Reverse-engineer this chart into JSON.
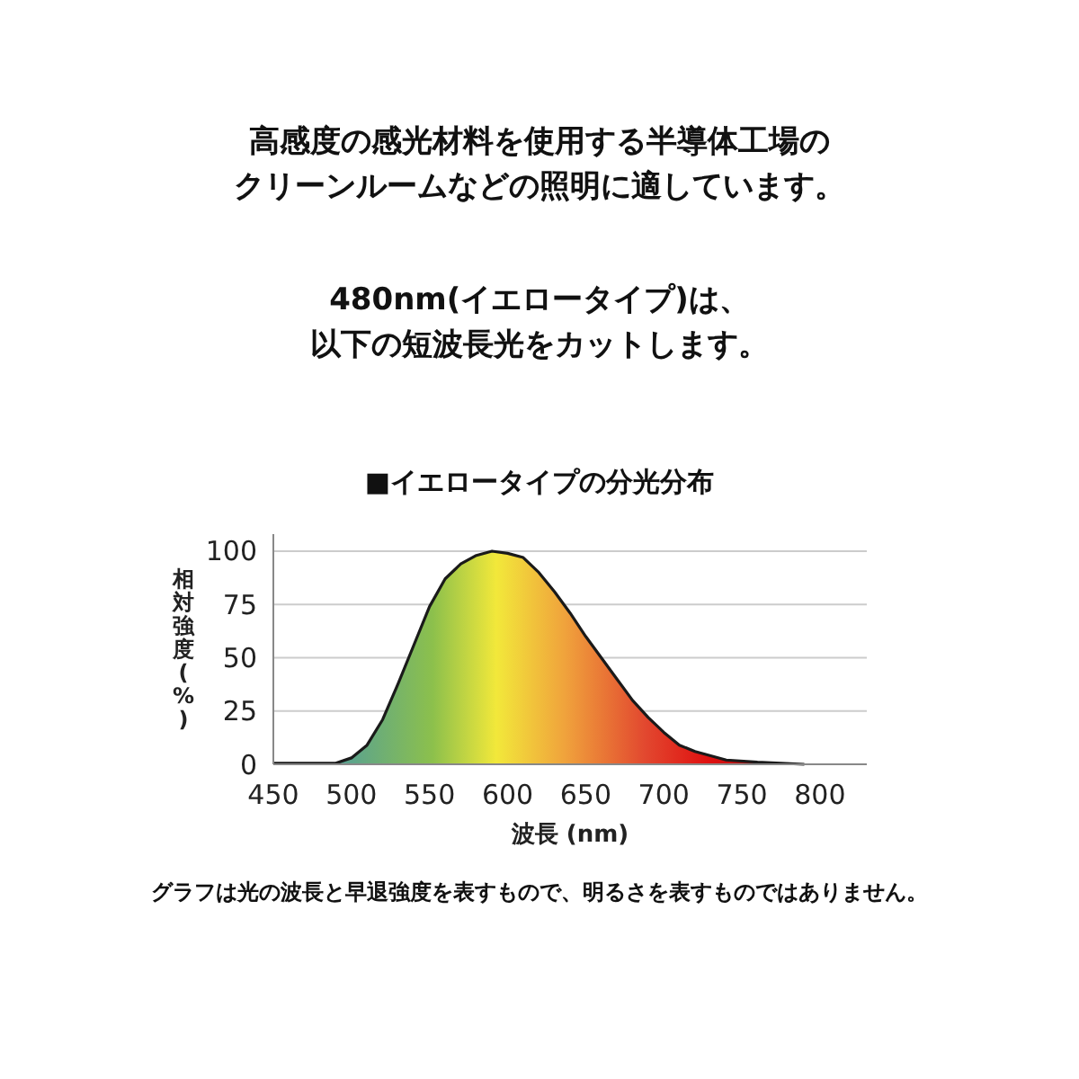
{
  "chart_data": {
    "type": "area",
    "title": "■イエロータイプの分光分布",
    "annotations": [
      "高感度の感光材料を使用する半導体工場のクリーンルームなどの照明に適しています。",
      "480nm(イエロータイプ)は、以下の短波長光をカットします。",
      "グラフは光の波長と早退強度を表すもので、明るさを表すものではありません。"
    ],
    "xlabel": "波長 (nm)",
    "ylabel": "相対強度(%)",
    "x": [
      450,
      480,
      490,
      500,
      510,
      520,
      530,
      540,
      550,
      560,
      570,
      580,
      590,
      600,
      610,
      620,
      630,
      640,
      650,
      660,
      670,
      680,
      690,
      700,
      710,
      720,
      740,
      760,
      790
    ],
    "series": [
      {
        "color": "#1a1a1a",
        "values": [
          0.5,
          0.5,
          0.5,
          3,
          9,
          21,
          38,
          56,
          74,
          87,
          94,
          98,
          100,
          99,
          97,
          90,
          81,
          71,
          60,
          50,
          40,
          30,
          22,
          15,
          9,
          6,
          2,
          1,
          0
        ]
      }
    ],
    "xlim": [
      450,
      830
    ],
    "xticks": [
      450,
      500,
      550,
      600,
      650,
      700,
      750,
      800
    ],
    "ylim": [
      0,
      108
    ],
    "yticks": [
      0,
      25,
      50,
      75,
      100
    ],
    "grid": "y"
  }
}
